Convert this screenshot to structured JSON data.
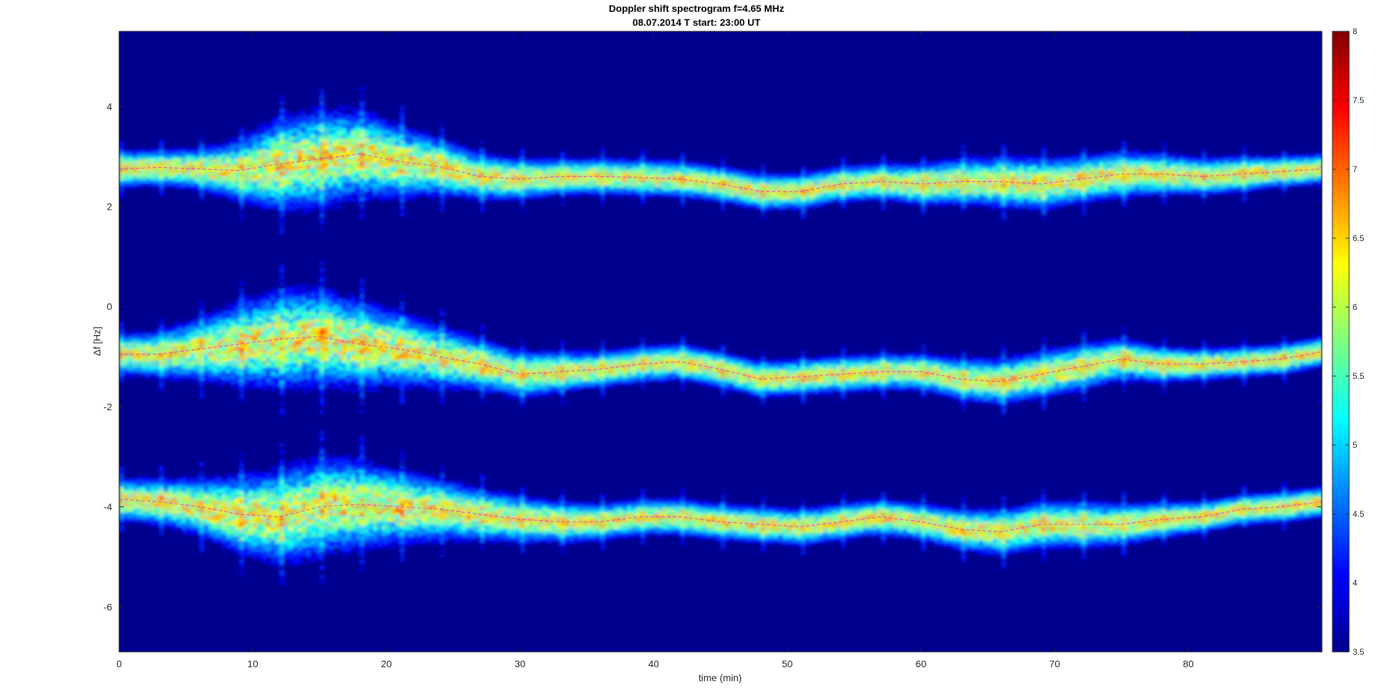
{
  "chart_data": {
    "type": "heatmap",
    "title": "Doppler shift spectrogram f=4.65 MHz",
    "subtitle": "08.07.2014    T start: 23:00 UT",
    "xlabel": "time (min)",
    "ylabel": "Δf [Hz]",
    "xlim": [
      0,
      90
    ],
    "ylim": [
      -6.9,
      5.5
    ],
    "xticks": [
      0,
      10,
      20,
      30,
      40,
      50,
      60,
      70,
      80
    ],
    "yticks": [
      4,
      2,
      0,
      -2,
      -4,
      -6
    ],
    "colorbar": {
      "colormap": "jet",
      "range": [
        3.5,
        8
      ],
      "ticks": [
        3.5,
        4,
        4.5,
        5,
        5.5,
        6,
        6.5,
        7,
        7.5,
        8
      ]
    },
    "background_color": "#00008f",
    "trace_color": "#e040e0",
    "series": [
      {
        "time_min": [
          0,
          3,
          6,
          9,
          12,
          15,
          18,
          21,
          24,
          27,
          30,
          33,
          36,
          39,
          42,
          45,
          48,
          51,
          54,
          57,
          60,
          63,
          66,
          69,
          72,
          75,
          78,
          81,
          84,
          87,
          90
        ],
        "doppler_hz": [
          2.75,
          2.78,
          2.75,
          2.72,
          2.85,
          2.95,
          3.05,
          2.9,
          2.8,
          2.6,
          2.55,
          2.6,
          2.6,
          2.58,
          2.55,
          2.45,
          2.3,
          2.3,
          2.45,
          2.5,
          2.45,
          2.5,
          2.5,
          2.45,
          2.55,
          2.65,
          2.65,
          2.6,
          2.65,
          2.7,
          2.75
        ],
        "spread_hz": [
          0.35,
          0.35,
          0.4,
          0.6,
          0.9,
          0.95,
          0.85,
          0.7,
          0.55,
          0.45,
          0.4,
          0.35,
          0.35,
          0.35,
          0.35,
          0.35,
          0.35,
          0.35,
          0.35,
          0.35,
          0.4,
          0.45,
          0.5,
          0.5,
          0.45,
          0.45,
          0.4,
          0.35,
          0.35,
          0.3,
          0.3
        ]
      },
      {
        "time_min": [
          0,
          3,
          6,
          9,
          12,
          15,
          18,
          21,
          24,
          27,
          30,
          33,
          36,
          39,
          42,
          45,
          48,
          51,
          54,
          57,
          60,
          63,
          66,
          69,
          72,
          75,
          78,
          81,
          84,
          87,
          90
        ],
        "doppler_hz": [
          -0.95,
          -0.95,
          -0.85,
          -0.75,
          -0.65,
          -0.6,
          -0.75,
          -0.85,
          -1.0,
          -1.15,
          -1.35,
          -1.3,
          -1.25,
          -1.15,
          -1.1,
          -1.25,
          -1.45,
          -1.4,
          -1.35,
          -1.3,
          -1.3,
          -1.45,
          -1.5,
          -1.35,
          -1.2,
          -1.05,
          -1.15,
          -1.15,
          -1.1,
          -1.05,
          -0.9
        ],
        "spread_hz": [
          0.4,
          0.45,
          0.6,
          0.8,
          0.95,
          0.95,
          0.85,
          0.7,
          0.6,
          0.5,
          0.45,
          0.4,
          0.35,
          0.35,
          0.35,
          0.35,
          0.35,
          0.35,
          0.35,
          0.35,
          0.35,
          0.4,
          0.45,
          0.45,
          0.45,
          0.4,
          0.35,
          0.3,
          0.3,
          0.3,
          0.3
        ]
      },
      {
        "time_min": [
          0,
          3,
          6,
          9,
          12,
          15,
          18,
          21,
          24,
          27,
          30,
          33,
          36,
          39,
          42,
          45,
          48,
          51,
          54,
          57,
          60,
          63,
          66,
          69,
          72,
          75,
          78,
          81,
          84,
          87,
          90
        ],
        "doppler_hz": [
          -3.85,
          -3.9,
          -4.0,
          -4.15,
          -4.2,
          -4.0,
          -3.95,
          -4.0,
          -4.05,
          -4.15,
          -4.25,
          -4.3,
          -4.3,
          -4.2,
          -4.2,
          -4.3,
          -4.35,
          -4.4,
          -4.3,
          -4.2,
          -4.3,
          -4.45,
          -4.5,
          -4.35,
          -4.35,
          -4.35,
          -4.25,
          -4.2,
          -4.05,
          -4.0,
          -3.9
        ],
        "spread_hz": [
          0.4,
          0.45,
          0.55,
          0.75,
          0.9,
          0.95,
          0.85,
          0.7,
          0.6,
          0.5,
          0.45,
          0.4,
          0.35,
          0.35,
          0.35,
          0.35,
          0.35,
          0.35,
          0.35,
          0.35,
          0.35,
          0.4,
          0.45,
          0.45,
          0.45,
          0.4,
          0.35,
          0.3,
          0.3,
          0.3,
          0.3
        ]
      }
    ]
  }
}
